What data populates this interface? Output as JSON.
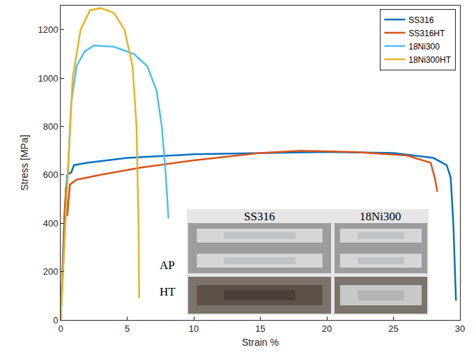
{
  "chart_data": {
    "type": "line",
    "x_label": "Strain %",
    "y_label": "Stress [MPa]",
    "xlim": [
      0,
      30
    ],
    "xticks": [
      0,
      5,
      10,
      15,
      20,
      25,
      30
    ],
    "ylim": [
      0,
      1300
    ],
    "yticks": [
      0,
      200,
      400,
      600,
      800,
      1000,
      1200
    ],
    "grid": false,
    "legend": "upper right",
    "annotations": [
      "SS316",
      "18Ni300",
      "AP",
      "HT"
    ],
    "series": [
      {
        "name": "SS316",
        "color": "#0072BD",
        "x": [
          0,
          0.3,
          0.5,
          0.6,
          0.8,
          1.0,
          2,
          5,
          10,
          15,
          20,
          25,
          28,
          29,
          29.3,
          29.5,
          29.6,
          29.7
        ],
        "values": [
          0,
          450,
          600,
          605,
          610,
          640,
          650,
          670,
          685,
          690,
          695,
          690,
          670,
          640,
          590,
          400,
          250,
          80
        ]
      },
      {
        "name": "SS316HT",
        "color": "#D95319",
        "x": [
          0,
          0.3,
          0.4,
          0.5,
          0.7,
          1.2,
          3,
          6,
          10,
          15,
          18,
          22,
          26,
          27.8,
          28.1,
          28.3
        ],
        "values": [
          0,
          450,
          550,
          430,
          560,
          580,
          600,
          630,
          660,
          690,
          700,
          695,
          680,
          650,
          590,
          530
        ]
      },
      {
        "name": "18Ni300",
        "color": "#4DBEEE",
        "x": [
          0,
          0.8,
          1.2,
          1.8,
          2.5,
          4,
          5.5,
          6.5,
          7.2,
          7.6,
          7.9,
          8.1
        ],
        "values": [
          0,
          900,
          1050,
          1110,
          1135,
          1130,
          1100,
          1050,
          950,
          800,
          600,
          420
        ]
      },
      {
        "name": "18Ni300HT",
        "color": "#EDB120",
        "x": [
          0,
          0.9,
          1.5,
          2.2,
          3,
          4,
          4.8,
          5.4,
          5.7,
          5.85,
          5.9
        ],
        "values": [
          0,
          1000,
          1200,
          1280,
          1290,
          1270,
          1200,
          1050,
          800,
          400,
          90
        ]
      }
    ]
  }
}
